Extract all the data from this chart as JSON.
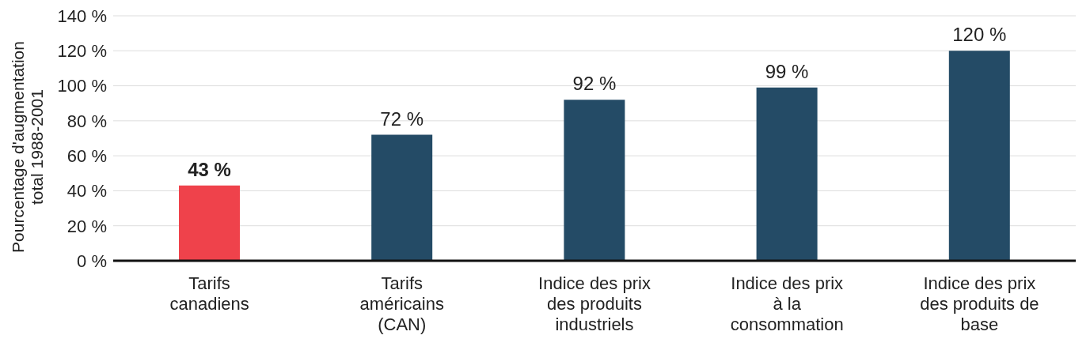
{
  "chart_data": {
    "type": "bar",
    "ylabel": "Pourcentage d'augmentation total 1988-2001",
    "categories": [
      "Tarifs canadiens",
      "Tarifs américains (CAN)",
      "Indice des prix des produits industriels",
      "Indice des prix à la consommation",
      "Indice des prix des produits de base"
    ],
    "values": [
      43,
      72,
      92,
      99,
      120
    ],
    "colors": [
      "#ef424b",
      "#244b66",
      "#244b66",
      "#244b66",
      "#244b66"
    ],
    "value_labels": [
      "43 %",
      "72 %",
      "92 %",
      "99 %",
      "120 %"
    ],
    "ylim": [
      0,
      140
    ],
    "yticks": [
      {
        "value": 0,
        "label": "0 %"
      },
      {
        "value": 20,
        "label": "20 %"
      },
      {
        "value": 40,
        "label": "40 %"
      },
      {
        "value": 60,
        "label": "60 %"
      },
      {
        "value": 80,
        "label": "80 %"
      },
      {
        "value": 100,
        "label": "100 %"
      },
      {
        "value": 120,
        "label": "120 %"
      },
      {
        "value": 140,
        "label": "140 %"
      }
    ],
    "grid": "y",
    "legend": false
  }
}
